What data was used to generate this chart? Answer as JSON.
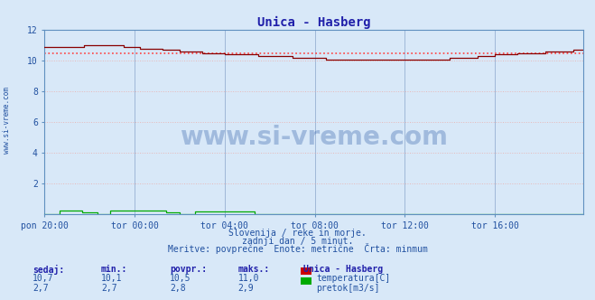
{
  "title": "Unica - Hasberg",
  "bg_color": "#d8e8f8",
  "plot_bg_color": "#d8e8f8",
  "grid_v_color": "#a0b8d8",
  "grid_h_color": "#e8b8b8",
  "temp_color": "#880000",
  "temp_avg_color": "#ff4040",
  "flow_color": "#00aa00",
  "ylim": [
    0,
    12
  ],
  "yticks": [
    2,
    4,
    6,
    8,
    10,
    12
  ],
  "n_points": 288,
  "temp_min": 10.1,
  "temp_max": 11.0,
  "temp_avg": 10.5,
  "temp_current": 10.7,
  "flow_min": 2.7,
  "flow_max": 2.9,
  "flow_avg": 2.8,
  "flow_current": 2.7,
  "xtick_labels": [
    "pon 20:00",
    "tor 00:00",
    "tor 04:00",
    "tor 08:00",
    "tor 12:00",
    "tor 16:00"
  ],
  "xtick_pos": [
    0,
    48,
    96,
    144,
    192,
    240
  ],
  "footer_line1": "Slovenija / reke in morje.",
  "footer_line2": "zadnji dan / 5 minut.",
  "footer_line3": "Meritve: povprečne  Enote: metrične  Črta: minmum",
  "label_sedaj": "sedaj:",
  "label_min": "min.:",
  "label_povpr": "povpr.:",
  "label_maks": "maks.:",
  "label_station": "Unica - Hasberg",
  "label_temp": "temperatura[C]",
  "label_flow": "pretok[m3/s]",
  "watermark": "www.si-vreme.com",
  "watermark_color": "#2050a0",
  "sidebar_text": "www.si-vreme.com",
  "sidebar_color": "#2050a0",
  "text_color": "#2050a0",
  "title_color": "#2020aa"
}
